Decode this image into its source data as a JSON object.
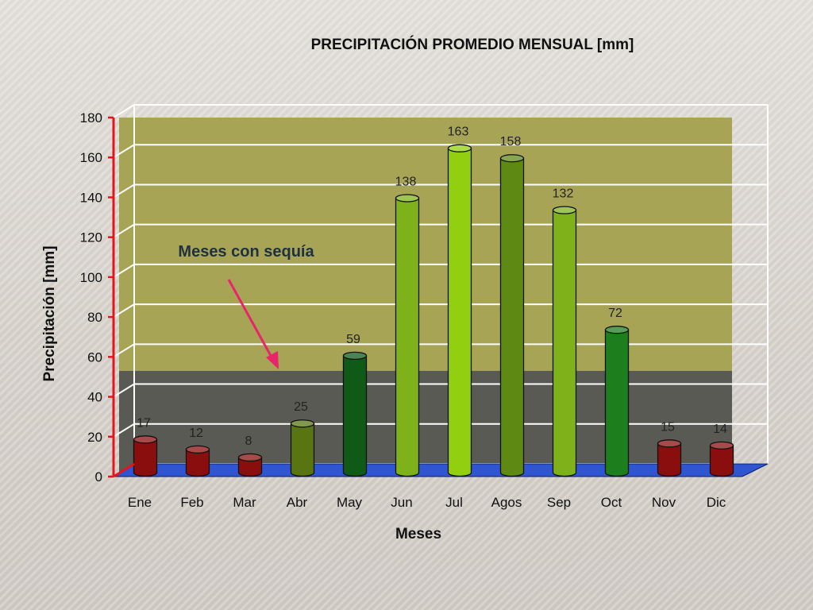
{
  "chart_data": {
    "type": "bar",
    "title": "PRECIPITACIÓN PROMEDIO MENSUAL [mm]",
    "xlabel": "Meses",
    "ylabel": "Precipitación [mm]",
    "categories": [
      "Ene",
      "Feb",
      "Mar",
      "Abr",
      "May",
      "Jun",
      "Jul",
      "Agos",
      "Sep",
      "Oct",
      "Nov",
      "Dic"
    ],
    "values": [
      17,
      12,
      8,
      25,
      59,
      138,
      163,
      158,
      132,
      72,
      15,
      14
    ],
    "yticks": [
      "0",
      "20",
      "40",
      "60",
      "80",
      "100",
      "120",
      "140",
      "160",
      "180"
    ],
    "ylim": [
      0,
      180
    ],
    "grid": true,
    "drought_threshold": 53,
    "annotation": "Meses con sequía",
    "bar_colors": [
      "#8a0e0e",
      "#8a0e0e",
      "#8a0e0e",
      "#587512",
      "#0f5a17",
      "#7fb21a",
      "#92cf10",
      "#5e8a14",
      "#7fb21a",
      "#1c7e1c",
      "#8a0e0e",
      "#8a0e0e"
    ],
    "colors": {
      "wet_band": "#a8a456",
      "dry_band": "#5a5a55",
      "floor": "#2f55d0",
      "axis": "#e8141c",
      "arrow": "#e8246a"
    }
  }
}
